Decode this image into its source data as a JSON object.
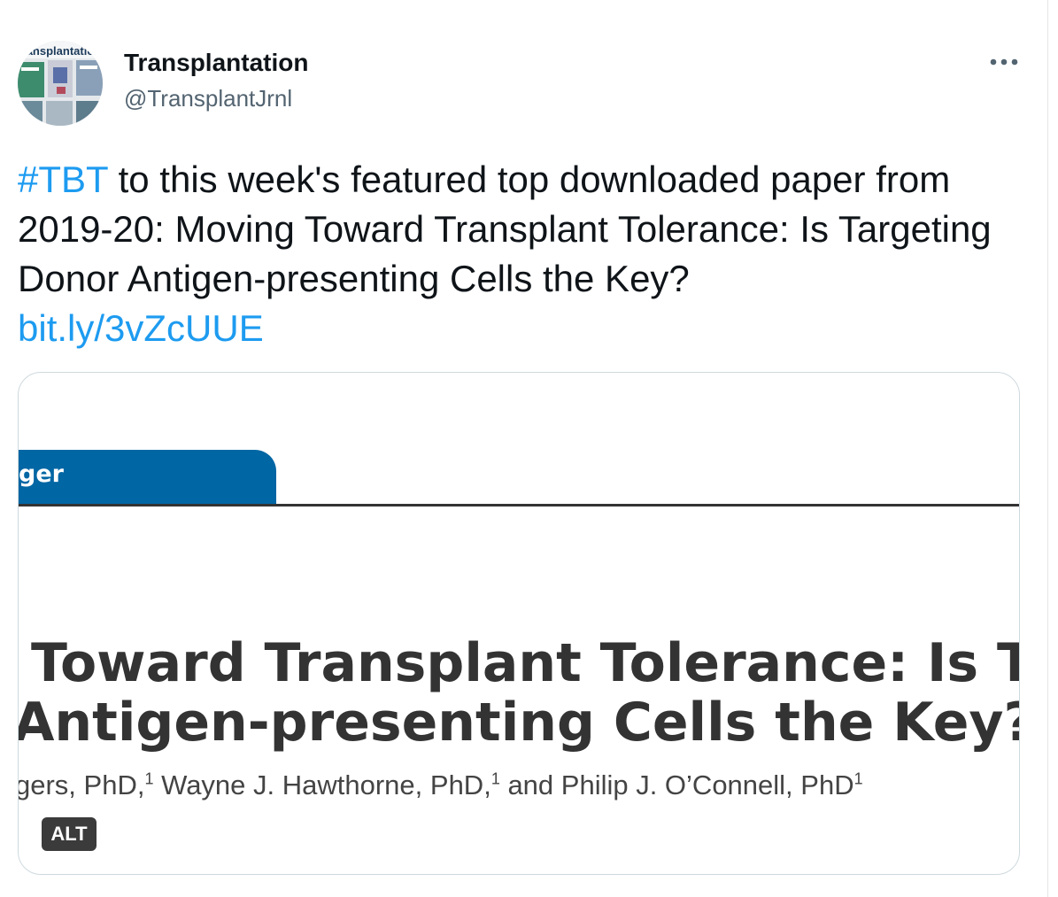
{
  "author": {
    "display_name": "Transplantation",
    "handle": "@TransplantJrnl",
    "avatar_icon": "journal-cover-collage-avatar",
    "avatar_text": "ansplantatio"
  },
  "menu": {
    "icon": "more-horizontal-icon"
  },
  "tweet": {
    "hashtag": "#TBT",
    "text_before_link": " to this week's featured top downloaded paper from 2019-20: Moving Toward Transplant Tolerance: Is Targeting Donor Antigen-presenting Cells the Key?",
    "link": "bit.ly/3vZcUUE",
    "link_color": "#1d9bf0"
  },
  "media": {
    "header_tab": "ger",
    "title_line1": "Toward Transplant Tolerance: Is Targ",
    "title_line2": "Antigen-presenting Cells the Key?",
    "authors_a": "gers, PhD,",
    "authors_b": " Wayne J. Hawthorne, PhD,",
    "authors_c": " and Philip J. O’Connell, PhD",
    "superscript": "1",
    "alt_label": "ALT",
    "tab_color": "#0066a4"
  }
}
